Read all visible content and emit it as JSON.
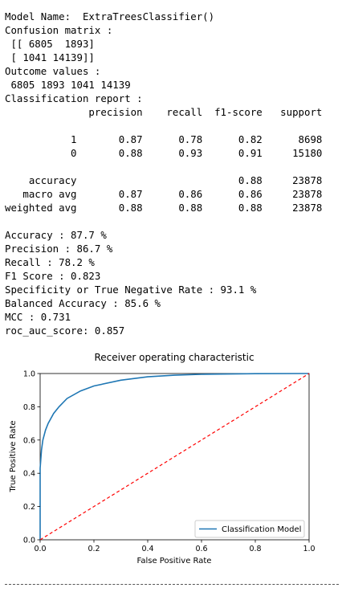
{
  "output_lines": [
    "Model Name:  ExtraTreesClassifier()",
    "Confusion matrix :",
    " [[ 6805  1893]",
    " [ 1041 14139]]",
    "Outcome values :",
    " 6805 1893 1041 14139",
    "Classification report :",
    "              precision    recall  f1-score   support",
    "",
    "           1       0.87      0.78      0.82      8698",
    "           0       0.88      0.93      0.91     15180",
    "",
    "    accuracy                           0.88     23878",
    "   macro avg       0.87      0.86      0.86     23878",
    "weighted avg       0.88      0.88      0.88     23878",
    "",
    "Accuracy : 87.7 %",
    "Precision : 86.7 %",
    "Recall : 78.2 %",
    "F1 Score : 0.823",
    "Specificity or True Negative Rate : 93.1 %",
    "Balanced Accuracy : 85.6 %",
    "MCC : 0.731",
    "roc_auc_score: 0.857"
  ],
  "chart_data": {
    "type": "line",
    "title": "Receiver operating characteristic",
    "xlabel": "False Positive Rate",
    "ylabel": "True Positive Rate",
    "xlim": [
      0.0,
      1.0
    ],
    "ylim": [
      0.0,
      1.0
    ],
    "xticks": [
      "0.0",
      "0.2",
      "0.4",
      "0.6",
      "0.8",
      "1.0"
    ],
    "yticks": [
      "0.0",
      "0.2",
      "0.4",
      "0.6",
      "0.8",
      "1.0"
    ],
    "grid": false,
    "legend_position": "lower right",
    "series": [
      {
        "name": "Classification Model",
        "color": "#1f77b4",
        "x": [
          0.0,
          0.0,
          0.005,
          0.01,
          0.02,
          0.03,
          0.05,
          0.07,
          0.1,
          0.15,
          0.2,
          0.3,
          0.4,
          0.5,
          0.6,
          0.8,
          1.0
        ],
        "y": [
          0.0,
          0.43,
          0.54,
          0.6,
          0.66,
          0.7,
          0.76,
          0.8,
          0.85,
          0.895,
          0.925,
          0.96,
          0.98,
          0.99,
          0.995,
          0.999,
          1.0
        ]
      },
      {
        "name": "",
        "color": "#ff0000",
        "dashed": true,
        "x": [
          0.0,
          1.0
        ],
        "y": [
          0.0,
          1.0
        ]
      }
    ]
  }
}
